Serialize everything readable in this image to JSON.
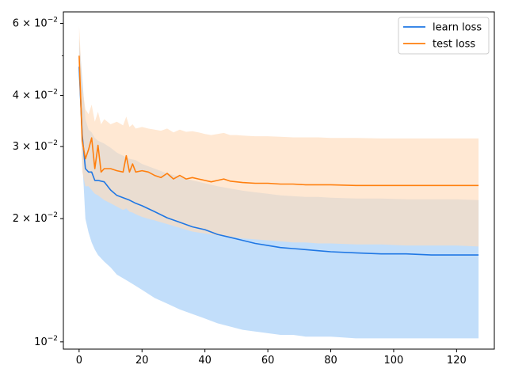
{
  "chart_data": {
    "type": "line",
    "title": "",
    "xlabel": "",
    "ylabel": "",
    "y_scale": "log",
    "xlim": [
      -5,
      132
    ],
    "ylim": [
      0.0096,
      0.064
    ],
    "grid": false,
    "legend_placement": "top-right",
    "x_ticks": [
      0,
      20,
      40,
      60,
      80,
      100,
      120
    ],
    "x_tick_labels": [
      "0",
      "20",
      "40",
      "60",
      "80",
      "100",
      "120"
    ],
    "y_major_ticks": [
      {
        "value": 0.01,
        "mantissa": "",
        "exponent": "−2"
      },
      {
        "value": 0.02,
        "mantissa": "2 × ",
        "exponent": "−2"
      },
      {
        "value": 0.03,
        "mantissa": "3 × ",
        "exponent": "−2"
      },
      {
        "value": 0.04,
        "mantissa": "4 × ",
        "exponent": "−2"
      },
      {
        "value": 0.06,
        "mantissa": "6 × ",
        "exponent": "−2"
      }
    ],
    "y_minor_ticks": [
      0.05
    ],
    "series": [
      {
        "name": "learn loss",
        "color": "#1f77e4",
        "band_color": "#a8d0f8",
        "x": [
          0,
          1,
          2,
          3,
          4,
          5,
          6,
          8,
          10,
          12,
          14,
          16,
          18,
          20,
          24,
          28,
          32,
          36,
          40,
          44,
          48,
          52,
          56,
          60,
          64,
          68,
          72,
          76,
          80,
          88,
          96,
          104,
          112,
          120,
          127
        ],
        "values": [
          0.047,
          0.032,
          0.0265,
          0.026,
          0.026,
          0.0248,
          0.0248,
          0.0246,
          0.0235,
          0.0228,
          0.0225,
          0.0222,
          0.0218,
          0.0215,
          0.0208,
          0.0201,
          0.0196,
          0.0191,
          0.0188,
          0.0183,
          0.018,
          0.0177,
          0.0174,
          0.0172,
          0.017,
          0.0169,
          0.0168,
          0.0167,
          0.0166,
          0.0165,
          0.0164,
          0.0164,
          0.0163,
          0.0163,
          0.0163
        ],
        "lower": [
          0.045,
          0.028,
          0.02,
          0.0185,
          0.0175,
          0.0168,
          0.0163,
          0.0157,
          0.0152,
          0.0146,
          0.0143,
          0.014,
          0.0137,
          0.0134,
          0.0128,
          0.0124,
          0.012,
          0.0117,
          0.0114,
          0.0111,
          0.0109,
          0.0107,
          0.0106,
          0.0105,
          0.0104,
          0.0104,
          0.0103,
          0.0103,
          0.0103,
          0.0102,
          0.0102,
          0.0102,
          0.0102,
          0.0102,
          0.0102
        ],
        "upper": [
          0.055,
          0.044,
          0.035,
          0.033,
          0.0325,
          0.0315,
          0.031,
          0.0305,
          0.0298,
          0.029,
          0.0285,
          0.028,
          0.0278,
          0.0272,
          0.0265,
          0.0258,
          0.0253,
          0.0248,
          0.0244,
          0.024,
          0.0237,
          0.0234,
          0.0232,
          0.023,
          0.0228,
          0.0227,
          0.0226,
          0.0226,
          0.0225,
          0.0224,
          0.0224,
          0.0223,
          0.0223,
          0.0223,
          0.0222
        ]
      },
      {
        "name": "test loss",
        "color": "#ff7f0e",
        "band_color": "#ffdcbc",
        "x": [
          0,
          1,
          2,
          3,
          4,
          5,
          6,
          7,
          8,
          10,
          12,
          14,
          15,
          16,
          17,
          18,
          20,
          22,
          24,
          26,
          28,
          30,
          32,
          34,
          36,
          38,
          40,
          42,
          44,
          46,
          48,
          50,
          52,
          56,
          60,
          64,
          68,
          72,
          76,
          80,
          88,
          96,
          104,
          112,
          120,
          127
        ],
        "values": [
          0.05,
          0.031,
          0.028,
          0.0295,
          0.0315,
          0.0265,
          0.0302,
          0.026,
          0.0265,
          0.0265,
          0.0262,
          0.026,
          0.0285,
          0.026,
          0.0272,
          0.026,
          0.0262,
          0.026,
          0.0255,
          0.0252,
          0.0258,
          0.025,
          0.0255,
          0.025,
          0.0252,
          0.025,
          0.0248,
          0.0246,
          0.0248,
          0.025,
          0.0247,
          0.0246,
          0.0245,
          0.0244,
          0.0244,
          0.0243,
          0.0243,
          0.0242,
          0.0242,
          0.0242,
          0.0241,
          0.0241,
          0.0241,
          0.0241,
          0.0241,
          0.0241
        ],
        "lower": [
          0.045,
          0.026,
          0.024,
          0.024,
          0.0235,
          0.023,
          0.0228,
          0.0225,
          0.0222,
          0.0218,
          0.0214,
          0.021,
          0.0212,
          0.0208,
          0.0207,
          0.0205,
          0.0202,
          0.02,
          0.0198,
          0.0196,
          0.0194,
          0.0192,
          0.019,
          0.0188,
          0.0186,
          0.0185,
          0.0184,
          0.0183,
          0.0182,
          0.0181,
          0.018,
          0.018,
          0.0179,
          0.0178,
          0.0177,
          0.0176,
          0.0175,
          0.0175,
          0.0174,
          0.0174,
          0.0173,
          0.0173,
          0.0172,
          0.0172,
          0.0172,
          0.0171
        ],
        "upper": [
          0.059,
          0.042,
          0.037,
          0.036,
          0.038,
          0.0345,
          0.0365,
          0.034,
          0.035,
          0.034,
          0.0345,
          0.0338,
          0.0355,
          0.0335,
          0.034,
          0.0332,
          0.0335,
          0.0332,
          0.033,
          0.0328,
          0.0332,
          0.0325,
          0.033,
          0.0326,
          0.0327,
          0.0325,
          0.0322,
          0.032,
          0.0322,
          0.0324,
          0.032,
          0.032,
          0.0319,
          0.0318,
          0.0318,
          0.0317,
          0.0316,
          0.0316,
          0.0316,
          0.0315,
          0.0315,
          0.0314,
          0.0314,
          0.0314,
          0.0314,
          0.0314
        ]
      }
    ]
  }
}
